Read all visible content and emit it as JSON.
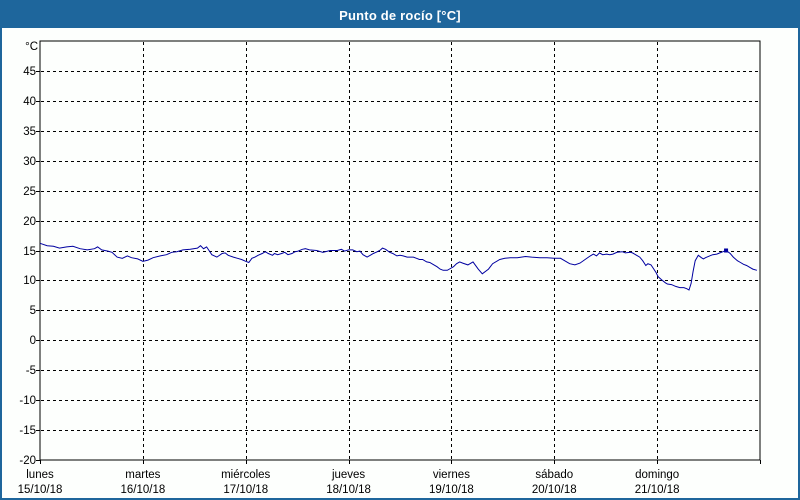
{
  "window": {
    "title": "Punto de rocío [°C]"
  },
  "colors": {
    "titlebar_bg": "#1e669c",
    "titlebar_text": "#ffffff",
    "frame_border": "#1e669c",
    "plot_bg": "#fdfffd",
    "axis": "#000000",
    "grid": "#000000",
    "line": "#0000a0",
    "label_text": "#000000"
  },
  "chart_data": {
    "type": "line",
    "title": "Punto de rocío [°C]",
    "ylabel": "°C",
    "xlabel": "",
    "ylim": [
      -20,
      50
    ],
    "y_tick_min": -20,
    "y_tick_max": 45,
    "y_tick_step": 5,
    "grid": "dashed",
    "legend_position": "none",
    "x_range_days": [
      0,
      7
    ],
    "x_days": [
      {
        "day": "lunes",
        "date": "15/10/18"
      },
      {
        "day": "martes",
        "date": "16/10/18"
      },
      {
        "day": "miércoles",
        "date": "17/10/18"
      },
      {
        "day": "jueves",
        "date": "18/10/18"
      },
      {
        "day": "viernes",
        "date": "19/10/18"
      },
      {
        "day": "sábado",
        "date": "20/10/18"
      },
      {
        "day": "domingo",
        "date": "21/10/18"
      }
    ],
    "series": [
      {
        "name": "Punto de rocío",
        "color": "#0000a0",
        "points": [
          [
            0.0,
            16.2
          ],
          [
            0.07,
            15.8
          ],
          [
            0.13,
            15.7
          ],
          [
            0.19,
            15.4
          ],
          [
            0.26,
            15.6
          ],
          [
            0.32,
            15.7
          ],
          [
            0.39,
            15.3
          ],
          [
            0.46,
            15.1
          ],
          [
            0.53,
            15.3
          ],
          [
            0.56,
            15.6
          ],
          [
            0.6,
            15.1
          ],
          [
            0.66,
            14.9
          ],
          [
            0.7,
            14.7
          ],
          [
            0.75,
            13.9
          ],
          [
            0.8,
            13.7
          ],
          [
            0.85,
            14.1
          ],
          [
            0.89,
            13.8
          ],
          [
            0.95,
            13.6
          ],
          [
            1.0,
            13.2
          ],
          [
            1.05,
            13.4
          ],
          [
            1.1,
            13.8
          ],
          [
            1.17,
            14.1
          ],
          [
            1.23,
            14.3
          ],
          [
            1.28,
            14.7
          ],
          [
            1.33,
            14.8
          ],
          [
            1.39,
            15.1
          ],
          [
            1.46,
            15.2
          ],
          [
            1.53,
            15.4
          ],
          [
            1.56,
            15.8
          ],
          [
            1.59,
            15.3
          ],
          [
            1.62,
            15.6
          ],
          [
            1.67,
            14.3
          ],
          [
            1.72,
            13.9
          ],
          [
            1.77,
            14.5
          ],
          [
            1.8,
            14.6
          ],
          [
            1.83,
            14.2
          ],
          [
            1.88,
            13.9
          ],
          [
            1.92,
            13.7
          ],
          [
            1.96,
            13.5
          ],
          [
            2.0,
            13.2
          ],
          [
            2.03,
            13.0
          ],
          [
            2.06,
            13.7
          ],
          [
            2.09,
            13.9
          ],
          [
            2.12,
            14.2
          ],
          [
            2.16,
            14.5
          ],
          [
            2.19,
            14.8
          ],
          [
            2.22,
            14.5
          ],
          [
            2.26,
            14.2
          ],
          [
            2.28,
            14.5
          ],
          [
            2.31,
            14.3
          ],
          [
            2.35,
            14.5
          ],
          [
            2.38,
            14.7
          ],
          [
            2.41,
            14.3
          ],
          [
            2.45,
            14.5
          ],
          [
            2.48,
            14.8
          ],
          [
            2.51,
            14.9
          ],
          [
            2.55,
            15.2
          ],
          [
            2.58,
            15.3
          ],
          [
            2.62,
            15.1
          ],
          [
            2.69,
            15.0
          ],
          [
            2.75,
            14.7
          ],
          [
            2.82,
            15.0
          ],
          [
            2.89,
            15.0
          ],
          [
            2.93,
            15.2
          ],
          [
            2.96,
            14.9
          ],
          [
            3.0,
            15.1
          ],
          [
            3.04,
            15.1
          ],
          [
            3.08,
            14.8
          ],
          [
            3.11,
            14.9
          ],
          [
            3.14,
            14.3
          ],
          [
            3.18,
            13.9
          ],
          [
            3.21,
            14.2
          ],
          [
            3.24,
            14.5
          ],
          [
            3.28,
            14.8
          ],
          [
            3.31,
            15.1
          ],
          [
            3.33,
            15.4
          ],
          [
            3.36,
            15.2
          ],
          [
            3.4,
            14.7
          ],
          [
            3.43,
            14.5
          ],
          [
            3.47,
            14.1
          ],
          [
            3.5,
            14.2
          ],
          [
            3.53,
            14.1
          ],
          [
            3.57,
            13.9
          ],
          [
            3.6,
            13.9
          ],
          [
            3.63,
            13.9
          ],
          [
            3.66,
            13.7
          ],
          [
            3.69,
            13.5
          ],
          [
            3.72,
            13.5
          ],
          [
            3.76,
            13.1
          ],
          [
            3.79,
            13.0
          ],
          [
            3.82,
            12.7
          ],
          [
            3.86,
            12.3
          ],
          [
            3.89,
            11.9
          ],
          [
            3.92,
            11.7
          ],
          [
            3.96,
            11.7
          ],
          [
            3.99,
            12.0
          ],
          [
            4.02,
            12.3
          ],
          [
            4.05,
            12.8
          ],
          [
            4.08,
            13.1
          ],
          [
            4.11,
            12.9
          ],
          [
            4.16,
            12.6
          ],
          [
            4.21,
            13.1
          ],
          [
            4.26,
            11.9
          ],
          [
            4.3,
            11.1
          ],
          [
            4.36,
            11.9
          ],
          [
            4.4,
            12.8
          ],
          [
            4.47,
            13.5
          ],
          [
            4.52,
            13.7
          ],
          [
            4.57,
            13.8
          ],
          [
            4.64,
            13.8
          ],
          [
            4.72,
            14.0
          ],
          [
            4.78,
            13.9
          ],
          [
            4.86,
            13.8
          ],
          [
            4.93,
            13.8
          ],
          [
            5.0,
            13.7
          ],
          [
            5.06,
            13.7
          ],
          [
            5.1,
            13.3
          ],
          [
            5.15,
            12.8
          ],
          [
            5.2,
            12.6
          ],
          [
            5.25,
            12.9
          ],
          [
            5.3,
            13.5
          ],
          [
            5.35,
            14.1
          ],
          [
            5.38,
            14.4
          ],
          [
            5.41,
            14.1
          ],
          [
            5.44,
            14.6
          ],
          [
            5.47,
            14.3
          ],
          [
            5.51,
            14.4
          ],
          [
            5.54,
            14.3
          ],
          [
            5.57,
            14.4
          ],
          [
            5.61,
            14.7
          ],
          [
            5.66,
            14.8
          ],
          [
            5.69,
            14.6
          ],
          [
            5.74,
            14.7
          ],
          [
            5.76,
            14.6
          ],
          [
            5.8,
            14.2
          ],
          [
            5.83,
            13.9
          ],
          [
            5.86,
            13.3
          ],
          [
            5.89,
            12.5
          ],
          [
            5.91,
            12.8
          ],
          [
            5.94,
            12.6
          ],
          [
            5.96,
            12.1
          ],
          [
            5.99,
            11.3
          ],
          [
            6.01,
            10.6
          ],
          [
            6.05,
            10.0
          ],
          [
            6.08,
            9.6
          ],
          [
            6.1,
            9.4
          ],
          [
            6.14,
            9.3
          ],
          [
            6.18,
            9.0
          ],
          [
            6.22,
            8.8
          ],
          [
            6.26,
            8.8
          ],
          [
            6.29,
            8.6
          ],
          [
            6.31,
            8.4
          ],
          [
            6.33,
            9.5
          ],
          [
            6.35,
            11.5
          ],
          [
            6.37,
            13.3
          ],
          [
            6.4,
            14.2
          ],
          [
            6.43,
            13.8
          ],
          [
            6.45,
            13.6
          ],
          [
            6.47,
            13.8
          ],
          [
            6.51,
            14.1
          ],
          [
            6.54,
            14.3
          ],
          [
            6.58,
            14.4
          ],
          [
            6.61,
            14.6
          ],
          [
            6.64,
            14.8
          ],
          [
            6.67,
            15.0
          ],
          [
            6.71,
            14.5
          ],
          [
            6.74,
            13.9
          ],
          [
            6.78,
            13.3
          ],
          [
            6.81,
            13.0
          ],
          [
            6.84,
            12.7
          ],
          [
            6.87,
            12.5
          ],
          [
            6.9,
            12.2
          ],
          [
            6.93,
            11.9
          ],
          [
            6.97,
            11.7
          ]
        ]
      }
    ],
    "marker": {
      "t": 6.67,
      "v": 15.0
    }
  }
}
